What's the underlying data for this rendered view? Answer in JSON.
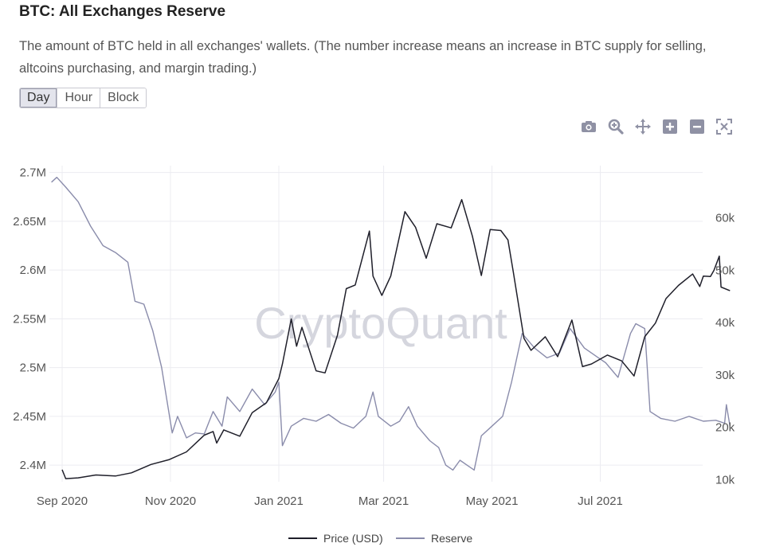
{
  "header": {
    "title": "BTC: All Exchanges Reserve",
    "description": "The amount of BTC held in all exchanges' wallets. (The number increase means an increase in BTC supply for selling, altcoins purchasing, and margin trading.)"
  },
  "tabs": [
    {
      "label": "Day",
      "active": true
    },
    {
      "label": "Hour",
      "active": false
    },
    {
      "label": "Block",
      "active": false
    }
  ],
  "toolbar": [
    "camera-icon",
    "zoom-icon",
    "pan-icon",
    "zoom-in-icon",
    "zoom-out-icon",
    "autoscale-icon"
  ],
  "watermark": "CryptoQuant",
  "chart_data": {
    "type": "line",
    "grid": true,
    "legend_position": "bottom-center",
    "x_ticks": [
      {
        "date": "2020-09-01",
        "label": "Sep 2020"
      },
      {
        "date": "2020-11-01",
        "label": "Nov 2020"
      },
      {
        "date": "2021-01-01",
        "label": "Jan 2021"
      },
      {
        "date": "2021-03-01",
        "label": "Mar 2021"
      },
      {
        "date": "2021-05-01",
        "label": "May 2021"
      },
      {
        "date": "2021-07-01",
        "label": "Jul 2021"
      }
    ],
    "y_left": {
      "ylim": [
        2383000,
        2707000
      ],
      "ticks": [
        {
          "value": 2400000,
          "label": "2.4M"
        },
        {
          "value": 2450000,
          "label": "2.45M"
        },
        {
          "value": 2500000,
          "label": "2.5M"
        },
        {
          "value": 2550000,
          "label": "2.55M"
        },
        {
          "value": 2600000,
          "label": "2.6M"
        },
        {
          "value": 2650000,
          "label": "2.65M"
        },
        {
          "value": 2700000,
          "label": "2.7M"
        }
      ]
    },
    "y_right": {
      "ylim": [
        9600,
        70000
      ],
      "ticks": [
        {
          "value": 10000,
          "label": "10k"
        },
        {
          "value": 20000,
          "label": "20k"
        },
        {
          "value": 30000,
          "label": "30k"
        },
        {
          "value": 40000,
          "label": "40k"
        },
        {
          "value": 50000,
          "label": "50k"
        },
        {
          "value": 60000,
          "label": "60k"
        }
      ]
    },
    "series": [
      {
        "name": "Price (USD)",
        "axis": "right",
        "color": "#1f1f2a",
        "points": [
          [
            "2020-09-01",
            11900
          ],
          [
            "2020-09-03",
            10200
          ],
          [
            "2020-09-10",
            10350
          ],
          [
            "2020-09-20",
            10900
          ],
          [
            "2020-10-01",
            10700
          ],
          [
            "2020-10-10",
            11300
          ],
          [
            "2020-10-21",
            12900
          ],
          [
            "2020-10-31",
            13800
          ],
          [
            "2020-11-10",
            15300
          ],
          [
            "2020-11-20",
            18500
          ],
          [
            "2020-11-25",
            19200
          ],
          [
            "2020-11-27",
            17000
          ],
          [
            "2020-12-01",
            19500
          ],
          [
            "2020-12-10",
            18300
          ],
          [
            "2020-12-17",
            22800
          ],
          [
            "2020-12-25",
            24700
          ],
          [
            "2021-01-01",
            29300
          ],
          [
            "2021-01-03",
            32100
          ],
          [
            "2021-01-08",
            40700
          ],
          [
            "2021-01-11",
            35500
          ],
          [
            "2021-01-14",
            39100
          ],
          [
            "2021-01-22",
            30800
          ],
          [
            "2021-01-27",
            30400
          ],
          [
            "2021-02-03",
            37600
          ],
          [
            "2021-02-08",
            46500
          ],
          [
            "2021-02-13",
            47200
          ],
          [
            "2021-02-21",
            57500
          ],
          [
            "2021-02-23",
            48900
          ],
          [
            "2021-02-28",
            45200
          ],
          [
            "2021-03-05",
            48900
          ],
          [
            "2021-03-13",
            61200
          ],
          [
            "2021-03-19",
            58200
          ],
          [
            "2021-03-25",
            52300
          ],
          [
            "2021-03-31",
            58900
          ],
          [
            "2021-04-08",
            58100
          ],
          [
            "2021-04-14",
            63500
          ],
          [
            "2021-04-20",
            56500
          ],
          [
            "2021-04-25",
            49000
          ],
          [
            "2021-04-30",
            57800
          ],
          [
            "2021-05-06",
            57600
          ],
          [
            "2021-05-10",
            55800
          ],
          [
            "2021-05-13",
            49700
          ],
          [
            "2021-05-19",
            37000
          ],
          [
            "2021-05-23",
            34700
          ],
          [
            "2021-05-31",
            37300
          ],
          [
            "2021-06-07",
            33500
          ],
          [
            "2021-06-15",
            40500
          ],
          [
            "2021-06-21",
            31600
          ],
          [
            "2021-06-26",
            32100
          ],
          [
            "2021-07-05",
            33800
          ],
          [
            "2021-07-13",
            32700
          ],
          [
            "2021-07-20",
            29800
          ],
          [
            "2021-07-26",
            37300
          ],
          [
            "2021-08-01",
            39900
          ],
          [
            "2021-08-07",
            44600
          ],
          [
            "2021-08-14",
            47100
          ],
          [
            "2021-08-22",
            49300
          ],
          [
            "2021-08-26",
            46900
          ],
          [
            "2021-08-28",
            48900
          ],
          [
            "2021-09-01",
            48800
          ],
          [
            "2021-09-03",
            50000
          ],
          [
            "2021-09-06",
            52700
          ],
          [
            "2021-09-07",
            46800
          ],
          [
            "2021-09-12",
            46100
          ]
        ]
      },
      {
        "name": "Reserve",
        "axis": "left",
        "color": "#8a8cab",
        "points": [
          [
            "2020-08-26",
            2690000
          ],
          [
            "2020-08-29",
            2695000
          ],
          [
            "2020-09-03",
            2685000
          ],
          [
            "2020-09-10",
            2670000
          ],
          [
            "2020-09-17",
            2645000
          ],
          [
            "2020-09-24",
            2625000
          ],
          [
            "2020-10-01",
            2618000
          ],
          [
            "2020-10-08",
            2608000
          ],
          [
            "2020-10-12",
            2568000
          ],
          [
            "2020-10-17",
            2565000
          ],
          [
            "2020-10-22",
            2538000
          ],
          [
            "2020-10-27",
            2500000
          ],
          [
            "2020-10-31",
            2455000
          ],
          [
            "2020-11-02",
            2433000
          ],
          [
            "2020-11-05",
            2450000
          ],
          [
            "2020-11-10",
            2428000
          ],
          [
            "2020-11-15",
            2433000
          ],
          [
            "2020-11-20",
            2432000
          ],
          [
            "2020-11-25",
            2455000
          ],
          [
            "2020-11-30",
            2440000
          ],
          [
            "2020-12-03",
            2470000
          ],
          [
            "2020-12-10",
            2455000
          ],
          [
            "2020-12-17",
            2478000
          ],
          [
            "2020-12-24",
            2462000
          ],
          [
            "2020-12-30",
            2475000
          ],
          [
            "2021-01-01",
            2485000
          ],
          [
            "2021-01-03",
            2420000
          ],
          [
            "2021-01-08",
            2440000
          ],
          [
            "2021-01-15",
            2448000
          ],
          [
            "2021-01-22",
            2445000
          ],
          [
            "2021-01-29",
            2452000
          ],
          [
            "2021-02-05",
            2443000
          ],
          [
            "2021-02-12",
            2438000
          ],
          [
            "2021-02-19",
            2450000
          ],
          [
            "2021-02-23",
            2475000
          ],
          [
            "2021-02-26",
            2450000
          ],
          [
            "2021-03-05",
            2440000
          ],
          [
            "2021-03-10",
            2445000
          ],
          [
            "2021-03-15",
            2460000
          ],
          [
            "2021-03-20",
            2440000
          ],
          [
            "2021-03-27",
            2425000
          ],
          [
            "2021-04-01",
            2418000
          ],
          [
            "2021-04-05",
            2400000
          ],
          [
            "2021-04-09",
            2395000
          ],
          [
            "2021-04-13",
            2405000
          ],
          [
            "2021-04-17",
            2400000
          ],
          [
            "2021-04-21",
            2395000
          ],
          [
            "2021-04-25",
            2430000
          ],
          [
            "2021-05-01",
            2440000
          ],
          [
            "2021-05-07",
            2450000
          ],
          [
            "2021-05-12",
            2485000
          ],
          [
            "2021-05-18",
            2535000
          ],
          [
            "2021-05-25",
            2520000
          ],
          [
            "2021-06-01",
            2510000
          ],
          [
            "2021-06-08",
            2515000
          ],
          [
            "2021-06-14",
            2540000
          ],
          [
            "2021-06-22",
            2520000
          ],
          [
            "2021-06-30",
            2510000
          ],
          [
            "2021-07-04",
            2505000
          ],
          [
            "2021-07-11",
            2490000
          ],
          [
            "2021-07-18",
            2535000
          ],
          [
            "2021-07-21",
            2545000
          ],
          [
            "2021-07-26",
            2540000
          ],
          [
            "2021-07-29",
            2455000
          ],
          [
            "2021-08-04",
            2448000
          ],
          [
            "2021-08-12",
            2445000
          ],
          [
            "2021-08-20",
            2450000
          ],
          [
            "2021-08-28",
            2445000
          ],
          [
            "2021-09-04",
            2446000
          ],
          [
            "2021-09-09",
            2443000
          ],
          [
            "2021-09-10",
            2462000
          ],
          [
            "2021-09-12",
            2440000
          ]
        ]
      }
    ]
  }
}
